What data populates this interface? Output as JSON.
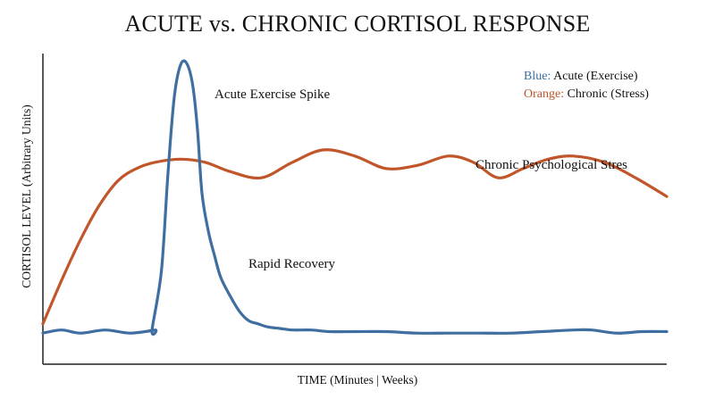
{
  "chart_data": {
    "type": "line",
    "title": "ACUTE vs. CHRONIC CORTISOL RESPONSE",
    "xlabel": "TIME (Minutes | Weeks)",
    "ylabel": "CORTISOL LEVEL (Arbitrary Units)",
    "xlim": [
      0,
      100
    ],
    "ylim": [
      0,
      100
    ],
    "grid": false,
    "legend": {
      "position": "top-right",
      "entries": [
        {
          "key": "Blue:",
          "label": "Acute (Exercise)",
          "color": "#3f6ea0"
        },
        {
          "key": "Orange:",
          "label": "Chronic (Stress)",
          "color": "#c0562a"
        }
      ]
    },
    "series": [
      {
        "color": "#3f6ea0",
        "x": [
          0,
          3,
          6,
          10,
          14,
          18,
          17.5,
          19,
          20,
          21,
          22,
          23,
          24,
          24.8,
          25.5,
          26.5,
          27.5,
          28.5,
          30,
          31.5,
          33,
          34.5,
          36,
          38,
          40,
          43,
          46,
          50,
          55,
          60,
          65,
          70,
          75,
          80,
          85,
          88,
          92,
          96,
          100
        ],
        "y": [
          10,
          11,
          10,
          11,
          10,
          11,
          11,
          30,
          60,
          85,
          96,
          97,
          90,
          75,
          55,
          43,
          35,
          28,
          22,
          17,
          14,
          13,
          12,
          11.5,
          11,
          11,
          10.5,
          10.5,
          10.5,
          10,
          10,
          10,
          10,
          10.5,
          11,
          11,
          10,
          10.5,
          10.5
        ]
      },
      {
        "color": "#c0562a",
        "x": [
          0,
          3,
          6,
          9,
          12,
          15,
          18,
          22,
          26,
          30,
          35,
          40,
          45,
          50,
          55,
          60,
          65,
          69,
          73,
          77,
          81,
          85,
          90,
          95,
          100
        ],
        "y": [
          13,
          27,
          40,
          51,
          59,
          63,
          65,
          66,
          65,
          62,
          60,
          65,
          69,
          67,
          63,
          64,
          67,
          65,
          60,
          63,
          66,
          67,
          65,
          60,
          54
        ]
      }
    ],
    "annotations": [
      {
        "text": "Acute Exercise Spike"
      },
      {
        "text": "Rapid Recovery"
      },
      {
        "text": "Chronic Psychological Stres"
      }
    ]
  }
}
